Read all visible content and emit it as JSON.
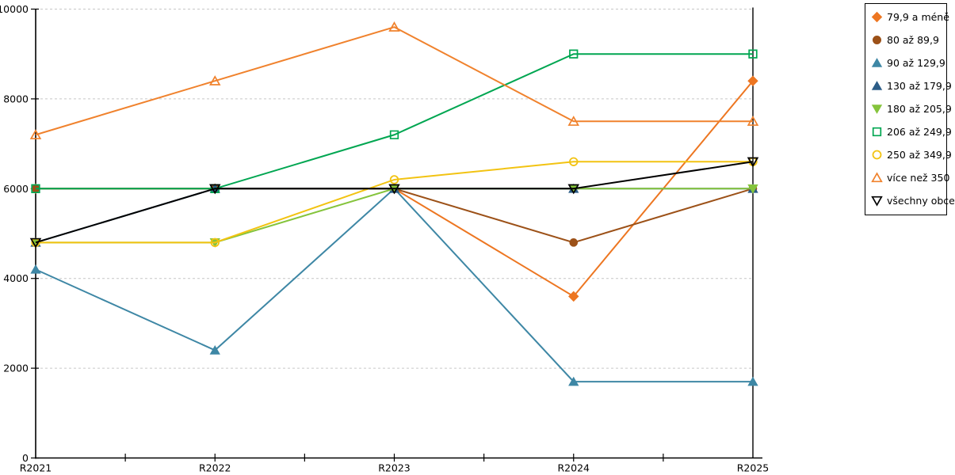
{
  "chart_data": {
    "type": "line",
    "title": "",
    "xlabel": "",
    "ylabel": "",
    "categories": [
      "R2021",
      "R2022",
      "R2023",
      "R2024",
      "R2025"
    ],
    "series": [
      {
        "name": "79,9 a méně",
        "color": "#ED7621",
        "marker": "diamond",
        "marker_fill": "filled",
        "values": [
          6000,
          6000,
          6000,
          3600,
          8400
        ]
      },
      {
        "name": "80 až 89,9",
        "color": "#9C5118",
        "marker": "circle",
        "marker_fill": "filled",
        "values": [
          6000,
          6000,
          6000,
          4800,
          6000
        ]
      },
      {
        "name": "90 až 129,9",
        "color": "#3E87A5",
        "marker": "triangle-up",
        "marker_fill": "filled",
        "values": [
          4200,
          2400,
          6000,
          1700,
          1700
        ]
      },
      {
        "name": "130 až 179,9",
        "color": "#2C5D87",
        "marker": "triangle-up",
        "marker_fill": "filled",
        "values": [
          4800,
          6000,
          6000,
          6000,
          6000
        ]
      },
      {
        "name": "180 až 205,9",
        "color": "#85C43C",
        "marker": "triangle-down",
        "marker_fill": "filled",
        "values": [
          4800,
          4800,
          6000,
          6000,
          6000
        ]
      },
      {
        "name": "206 až 249,9",
        "color": "#00A651",
        "marker": "square",
        "marker_fill": "hollow",
        "values": [
          6000,
          6000,
          7200,
          9000,
          9000
        ]
      },
      {
        "name": "250 až 349,9",
        "color": "#F2C312",
        "marker": "circle",
        "marker_fill": "hollow",
        "values": [
          4800,
          4800,
          6200,
          6600,
          6600
        ]
      },
      {
        "name": "více než 350",
        "color": "#F0822D",
        "marker": "triangle-up",
        "marker_fill": "hollow",
        "values": [
          7200,
          8400,
          9600,
          7500,
          7500
        ]
      },
      {
        "name": "všechny obce",
        "color": "#000000",
        "marker": "triangle-down",
        "marker_fill": "hollow",
        "values": [
          4800,
          6000,
          6000,
          6000,
          6600
        ]
      }
    ],
    "ylim": [
      0,
      10000
    ],
    "yticks": [
      0,
      2000,
      4000,
      6000,
      8000,
      10000
    ],
    "grid": "horizontal-dashed",
    "legend_position": "right"
  },
  "styles": {
    "background": "#FFFFFF",
    "gridline_color": "#C6C6C6",
    "axis_color": "#000000",
    "text_color": "#000000"
  }
}
